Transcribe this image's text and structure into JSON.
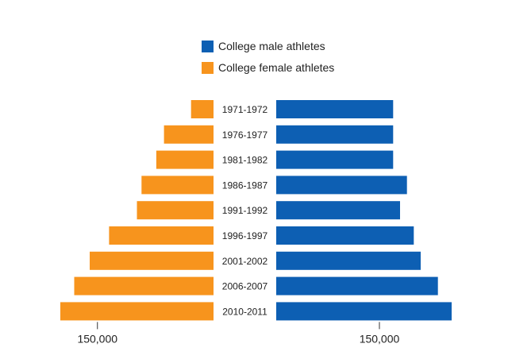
{
  "chart_data": {
    "type": "bar",
    "orientation": "horizontal-back-to-back",
    "categories": [
      "1971-1972",
      "1976-1977",
      "1981-1982",
      "1986-1987",
      "1991-1992",
      "1996-1997",
      "2001-2002",
      "2006-2007",
      "2010-2011"
    ],
    "series": [
      {
        "name": "College male athletes",
        "side": "right",
        "color": "#0d5fb3",
        "values": [
          170000,
          170000,
          170000,
          190000,
          180000,
          200000,
          210000,
          235000,
          255000
        ]
      },
      {
        "name": "College female athletes",
        "side": "left",
        "color": "#f7941d",
        "values": [
          29000,
          64000,
          74000,
          93000,
          99000,
          135000,
          160000,
          180000,
          198000
        ]
      }
    ],
    "xlim_left": [
      0,
      200000
    ],
    "xlim_right": [
      0,
      300000
    ],
    "tick_labels": {
      "left": "150,000",
      "right": "150,000"
    },
    "legend_position": "top",
    "title": "",
    "xlabel": "",
    "ylabel": ""
  }
}
